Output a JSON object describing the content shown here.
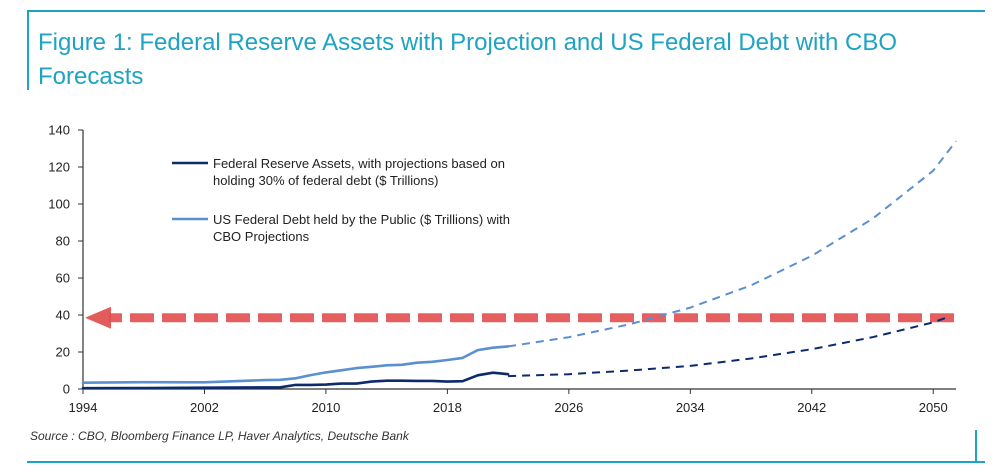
{
  "title": "Figure 1: Federal Reserve Assets with Projection and US Federal Debt with CBO Forecasts",
  "source": "Source : CBO, Bloomberg Finance LP, Haver Analytics, Deutsche Bank",
  "colors": {
    "frame": "#1fa3c2",
    "fed_assets": "#0d2a6b",
    "federal_debt": "#5b8fd0",
    "threshold_arrow": "#e04a4a"
  },
  "chart_data": {
    "type": "line",
    "title": "Figure 1: Federal Reserve Assets with Projection and US Federal Debt with CBO Forecasts",
    "xlabel": "",
    "ylabel": "",
    "xlim": [
      1994,
      2051.5
    ],
    "ylim": [
      0,
      140
    ],
    "x_ticks": [
      1994,
      2002,
      2010,
      2018,
      2026,
      2034,
      2042,
      2050
    ],
    "y_ticks": [
      0,
      20,
      40,
      60,
      80,
      100,
      120,
      140
    ],
    "grid": false,
    "legend_position": "top-left",
    "series": [
      {
        "name": "Federal Reserve Assets, with projections based on holding 30% of federal debt ($ Trillions)",
        "legend_lines": [
          "Federal Reserve Assets, with projections based on",
          "holding 30% of federal debt ($ Trillions)"
        ],
        "color": "#0d2a6b",
        "historical": {
          "x": [
            1994,
            1998,
            2002,
            2006,
            2007,
            2008,
            2009,
            2010,
            2011,
            2012,
            2013,
            2014,
            2015,
            2016,
            2017,
            2018,
            2019,
            2020,
            2021,
            2022
          ],
          "y": [
            0.45,
            0.55,
            0.7,
            0.85,
            0.9,
            2.2,
            2.2,
            2.4,
            2.9,
            2.9,
            4.0,
            4.5,
            4.5,
            4.4,
            4.4,
            4.0,
            4.2,
            7.4,
            8.8,
            8.0
          ]
        },
        "projection": {
          "x": [
            2022,
            2026,
            2030,
            2034,
            2038,
            2042,
            2046,
            2050,
            2051
          ],
          "y": [
            7.0,
            8.0,
            10.0,
            12.5,
            16.5,
            21.5,
            28.0,
            36.0,
            39.0
          ]
        }
      },
      {
        "name": "US Federal Debt held by the Public ($ Trillions) with CBO Projections",
        "legend_lines": [
          "US Federal Debt held by the Public ($ Trillions) with",
          "CBO Projections"
        ],
        "color": "#5b8fd0",
        "historical": {
          "x": [
            1994,
            1998,
            2002,
            2006,
            2007,
            2008,
            2009,
            2010,
            2011,
            2012,
            2013,
            2014,
            2015,
            2016,
            2017,
            2018,
            2019,
            2020,
            2021,
            2022
          ],
          "y": [
            3.4,
            3.7,
            3.6,
            4.8,
            5.0,
            5.8,
            7.5,
            9.0,
            10.1,
            11.3,
            12.0,
            12.8,
            13.1,
            14.2,
            14.7,
            15.7,
            16.8,
            21.0,
            22.3,
            23.0
          ]
        },
        "projection": {
          "x": [
            2022,
            2026,
            2030,
            2034,
            2038,
            2042,
            2046,
            2050,
            2051.5
          ],
          "y": [
            23.0,
            28.0,
            35.0,
            44.0,
            56.0,
            72.0,
            92.0,
            118.0,
            134.0
          ]
        }
      }
    ],
    "annotations": [
      {
        "type": "horizontal-arrow",
        "value": 38.5,
        "direction": "left",
        "color": "#e04a4a",
        "style": "dashed"
      }
    ]
  }
}
